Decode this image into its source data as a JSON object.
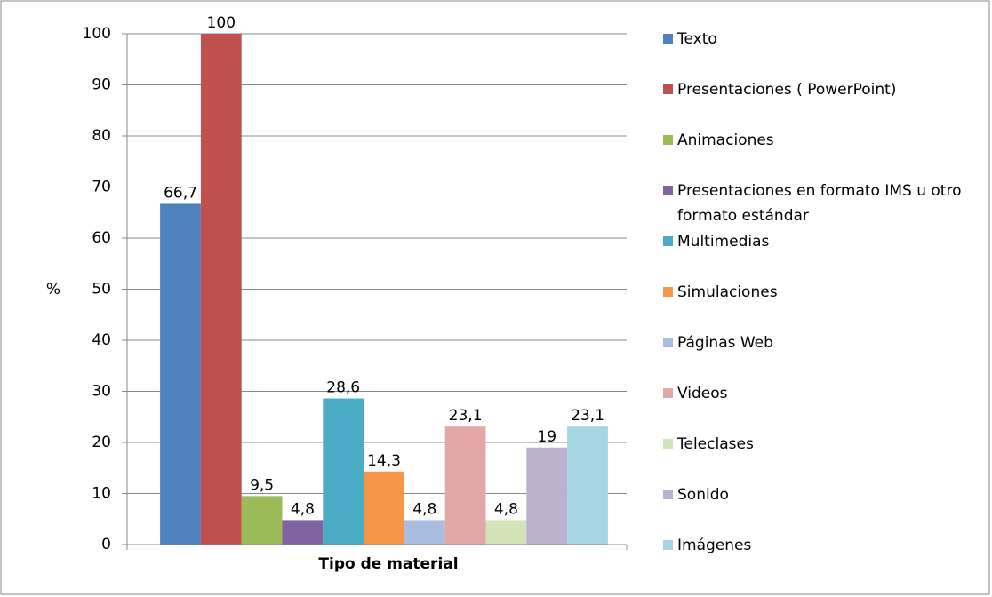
{
  "chart_data": {
    "type": "bar",
    "categories": [
      "Tipo de material"
    ],
    "y_label": "%",
    "ylim": [
      0,
      100
    ],
    "yticks": [
      0,
      10,
      20,
      30,
      40,
      50,
      60,
      70,
      80,
      90,
      100
    ],
    "grid": true,
    "legend": "right",
    "series": [
      {
        "name": "Texto",
        "color": "#4f81bd",
        "values": [
          66.7
        ],
        "value_labels": [
          "66,7"
        ]
      },
      {
        "name": "Presentaciones ( PowerPoint)",
        "color": "#c0504d",
        "values": [
          100
        ]
      },
      {
        "name": "Animaciones",
        "color": "#9bbb59",
        "values": [
          9.5
        ],
        "value_labels": [
          "9,5"
        ]
      },
      {
        "name": "Presentaciones en formato IMS  u otro formato estándar",
        "color": "#8064a2",
        "values": [
          4.8
        ],
        "value_labels": [
          "4,8"
        ]
      },
      {
        "name": "Multimedias",
        "color": "#4bacc6",
        "values": [
          28.6
        ],
        "value_labels": [
          "28,6"
        ]
      },
      {
        "name": "Simulaciones",
        "color": "#f79646",
        "values": [
          14.3
        ],
        "value_labels": [
          "14,3"
        ]
      },
      {
        "name": "Páginas Web",
        "color": "#a9bde1",
        "values": [
          4.8
        ],
        "value_labels": [
          "4,8"
        ]
      },
      {
        "name": "Videos",
        "color": "#e2a8a7",
        "values": [
          23.1
        ],
        "value_labels": [
          "23,1"
        ]
      },
      {
        "name": "Teleclases",
        "color": "#d4e3b8",
        "values": [
          4.8
        ],
        "value_labels": [
          "4,8"
        ]
      },
      {
        "name": "Sonido",
        "color": "#bcb0cf",
        "values": [
          19
        ]
      },
      {
        "name": "Imágenes",
        "color": "#a7d5e2",
        "values": [
          23.1
        ],
        "value_labels": [
          "23,1"
        ]
      }
    ]
  }
}
